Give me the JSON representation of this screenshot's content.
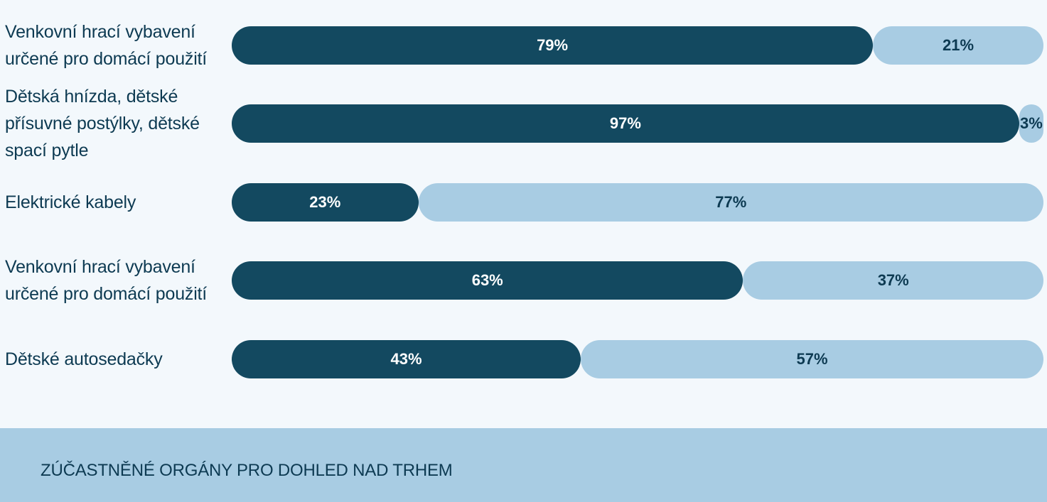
{
  "colors": {
    "background": "#f3f8fc",
    "dark_segment": "#134960",
    "light_segment": "#a8cce3",
    "footer_background": "#a8cce3",
    "text": "#0d3a52"
  },
  "chart_data": {
    "type": "bar",
    "orientation": "horizontal",
    "stacked": true,
    "categories": [
      "Venkovní hrací vybavení určené pro domácí použití",
      "Dětská hnízda, dětské přísuvné postýlky, dětské spací pytle",
      "Elektrické kabely",
      "Venkovní hrací vybavení určené pro domácí použití",
      "Dětské autosedačky"
    ],
    "series": [
      {
        "values": [
          79,
          97,
          23,
          63,
          43
        ],
        "labels": [
          "79%",
          "97%",
          "23%",
          "63%",
          "43%"
        ]
      },
      {
        "values": [
          21,
          3,
          77,
          37,
          57
        ],
        "labels": [
          "21%",
          "3%",
          "77%",
          "37%",
          "57%"
        ]
      }
    ],
    "xlim": [
      0,
      100
    ]
  },
  "footer": {
    "title": "ZÚČASTNĚNÉ ORGÁNY PRO DOHLED NAD TRHEM"
  }
}
